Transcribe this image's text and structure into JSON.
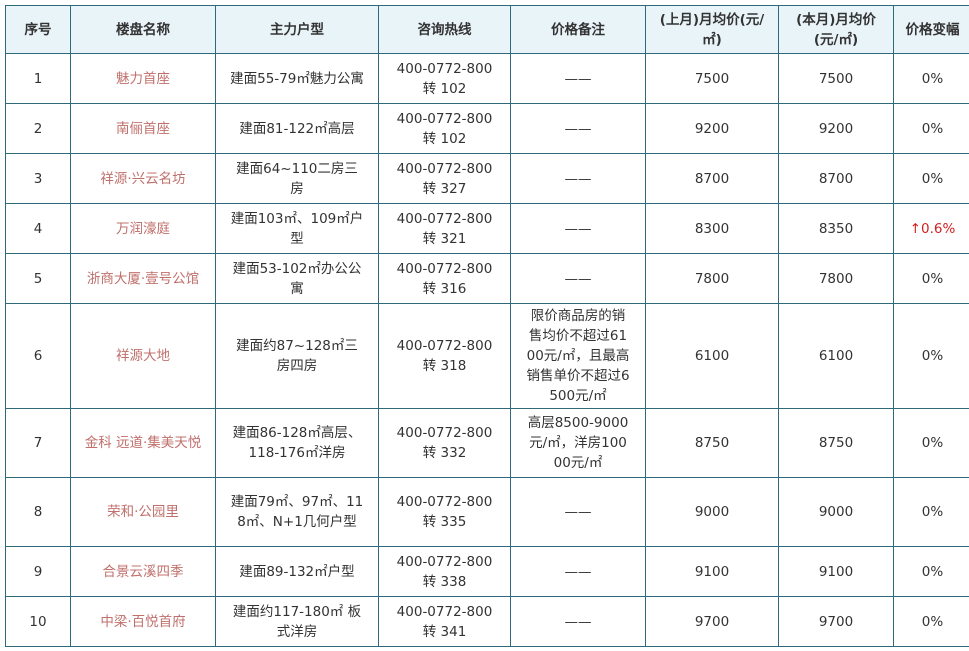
{
  "headers": [
    "序号",
    "楼盘名称",
    "主力户型",
    "咨询热线",
    "价格备注",
    "(上月)月均价(元/㎡)",
    "(本月)月均价(元/㎡)",
    "价格变幅"
  ],
  "colors": {
    "header_bg": "#e9f4f9",
    "border": "#2f6a7c",
    "name": "#c0706c",
    "increase": "#d42020"
  },
  "rows": [
    {
      "no": "1",
      "name": "魅力首座",
      "type": "建面55-79㎡魅力公寓",
      "phone": "400-0772-800",
      "ext": "转 102",
      "note": "——",
      "last": "7500",
      "this": "7500",
      "change": "0%"
    },
    {
      "no": "2",
      "name": "南俪首座",
      "type": "建面81-122㎡高层",
      "phone": "400-0772-800",
      "ext": "转 102",
      "note": "——",
      "last": "9200",
      "this": "9200",
      "change": "0%"
    },
    {
      "no": "3",
      "name": "祥源·兴云名坊",
      "type": "建面64~110二房三房",
      "phone": "400-0772-800",
      "ext": "转 327",
      "note": "——",
      "last": "8700",
      "this": "8700",
      "change": "0%"
    },
    {
      "no": "4",
      "name": "万润濠庭",
      "type": "建面103㎡、109㎡户型",
      "phone": "400-0772-800",
      "ext": "转 321",
      "note": "——",
      "last": "8300",
      "this": "8350",
      "change": "↑0.6%"
    },
    {
      "no": "5",
      "name": "浙商大厦·壹号公馆",
      "type": "建面53-102㎡办公公寓",
      "phone": "400-0772-800",
      "ext": "转 316",
      "note": "——",
      "last": "7800",
      "this": "7800",
      "change": "0%"
    },
    {
      "no": "6",
      "name": "祥源大地",
      "type": "建面约87~128㎡三房四房",
      "phone": "400-0772-800",
      "ext": "转 318",
      "note": "限价商品房的销售均价不超过6100元/㎡，且最高销售单价不超过6500元/㎡",
      "last": "6100",
      "this": "6100",
      "change": "0%"
    },
    {
      "no": "7",
      "name": "金科 远道·集美天悦",
      "type": "建面86-128㎡高层、118-176㎡洋房",
      "phone": "400-0772-800",
      "ext": "转 332",
      "note": "高层8500-9000元/㎡，洋房10000元/㎡",
      "last": "8750",
      "this": "8750",
      "change": "0%"
    },
    {
      "no": "8",
      "name": "荣和·公园里",
      "type": "建面79㎡、97㎡、118㎡、N+1几何户型",
      "phone": "400-0772-800",
      "ext": "转 335",
      "note": "——",
      "last": "9000",
      "this": "9000",
      "change": "0%"
    },
    {
      "no": "9",
      "name": "合景云溪四季",
      "type": "建面89-132㎡户型",
      "phone": "400-0772-800",
      "ext": "转 338",
      "note": "——",
      "last": "9100",
      "this": "9100",
      "change": "0%"
    },
    {
      "no": "10",
      "name": "中梁·百悦首府",
      "type": "建面约117-180㎡ 板式洋房",
      "phone": "400-0772-800",
      "ext": "转 341",
      "note": "——",
      "last": "9700",
      "this": "9700",
      "change": "0%"
    }
  ]
}
